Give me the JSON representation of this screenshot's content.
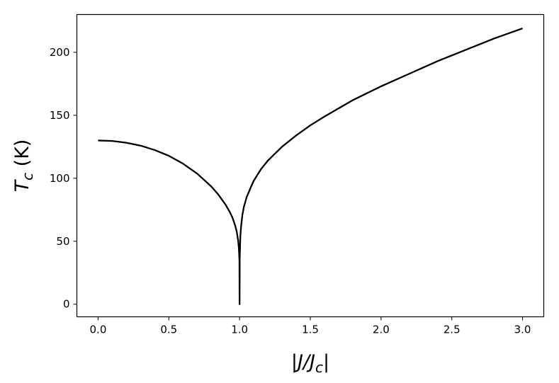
{
  "chart_data": {
    "type": "line",
    "xlabel_main": "|J/J",
    "xlabel_sub": "c",
    "xlabel_end": "|",
    "ylabel_main": "T",
    "ylabel_sub": "c",
    "ylabel_end": " (K)",
    "xlim": [
      -0.15,
      3.15
    ],
    "ylim": [
      -10,
      230
    ],
    "x_ticks": [
      {
        "value": 0.0,
        "label": "0.0"
      },
      {
        "value": 0.5,
        "label": "0.5"
      },
      {
        "value": 1.0,
        "label": "1.0"
      },
      {
        "value": 1.5,
        "label": "1.5"
      },
      {
        "value": 2.0,
        "label": "2.0"
      },
      {
        "value": 2.5,
        "label": "2.5"
      },
      {
        "value": 3.0,
        "label": "3.0"
      }
    ],
    "y_ticks": [
      {
        "value": 0,
        "label": "0"
      },
      {
        "value": 50,
        "label": "50"
      },
      {
        "value": 100,
        "label": "100"
      },
      {
        "value": 150,
        "label": "150"
      },
      {
        "value": 200,
        "label": "200"
      }
    ],
    "grid": false,
    "series": [
      {
        "color": "#000000",
        "x": [
          0.0,
          0.1,
          0.2,
          0.3,
          0.4,
          0.5,
          0.6,
          0.7,
          0.8,
          0.85,
          0.9,
          0.93,
          0.95,
          0.97,
          0.98,
          0.99,
          0.995,
          0.999,
          1.0,
          1.001,
          1.005,
          1.01,
          1.02,
          1.03,
          1.05,
          1.08,
          1.1,
          1.15,
          1.2,
          1.3,
          1.4,
          1.5,
          1.6,
          1.8,
          2.0,
          2.2,
          2.4,
          2.6,
          2.8,
          3.0
        ],
        "y": [
          130,
          129.6,
          128.2,
          125.9,
          122.4,
          117.8,
          111.6,
          103.7,
          93.5,
          87.0,
          79.2,
          73.4,
          68.7,
          62.0,
          57.5,
          50.6,
          44.3,
          35.0,
          0,
          36.0,
          53.0,
          61.0,
          71.0,
          77.0,
          85.0,
          93.0,
          98.0,
          107.0,
          114.0,
          125.0,
          134.0,
          142.0,
          149.0,
          162.0,
          173.0,
          183.0,
          193.0,
          202.0,
          211.0,
          219.0
        ]
      }
    ]
  }
}
